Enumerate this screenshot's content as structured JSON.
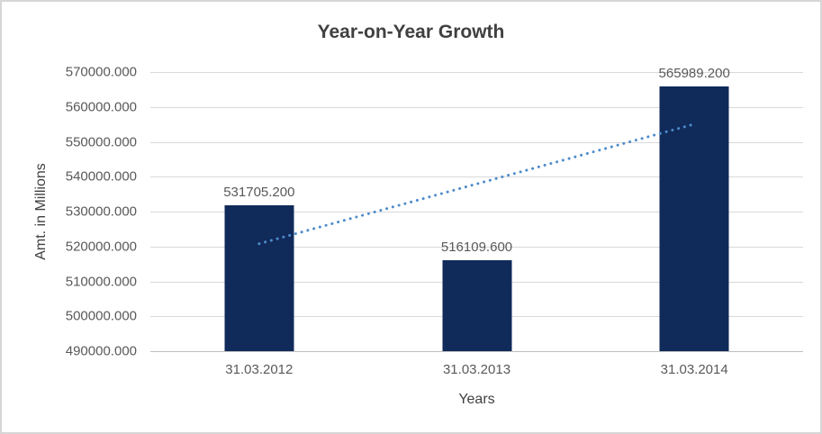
{
  "chart_data": {
    "type": "bar",
    "title": "Year-on-Year Growth",
    "xlabel": "Years",
    "ylabel": "Amt. in Millions",
    "categories": [
      "31.03.2012",
      "31.03.2013",
      "31.03.2014"
    ],
    "values": [
      531705.2,
      516109.6,
      565989.2
    ],
    "data_labels": [
      "531705.200",
      "516109.600",
      "565989.200"
    ],
    "ylim": [
      490000,
      570000
    ],
    "y_tick_step": 10000,
    "y_tick_labels": [
      "570000.000",
      "560000.000",
      "550000.000",
      "540000.000",
      "530000.000",
      "520000.000",
      "510000.000",
      "500000.000",
      "490000.000"
    ],
    "grid": true,
    "legend": false,
    "colors": {
      "bar": "#102a5a",
      "trendline": "#4e8ccb",
      "gridline": "#d9d9d9",
      "axis_line": "#bfbfbf",
      "title_text": "#404040",
      "tick_text": "#595959"
    },
    "trendline": {
      "style": "dotted",
      "start_value": 520790,
      "end_value": 555080
    }
  }
}
